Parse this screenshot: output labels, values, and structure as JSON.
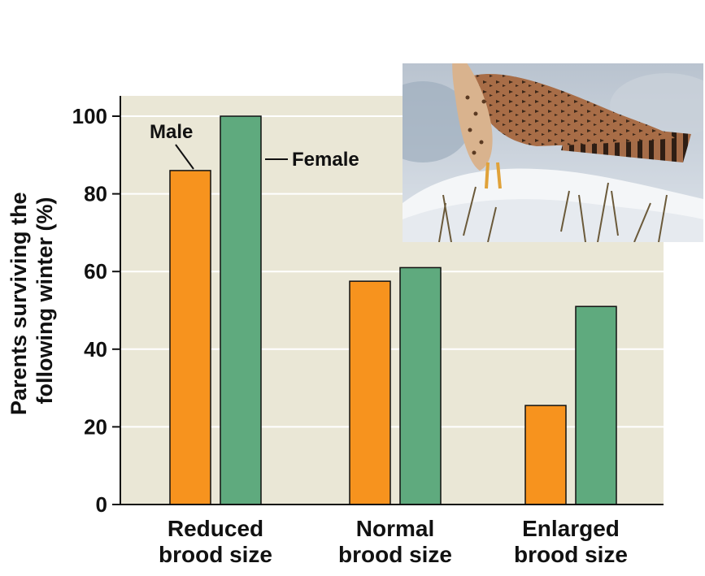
{
  "chart_data": {
    "type": "bar",
    "categories": [
      [
        "Reduced",
        "brood size"
      ],
      [
        "Normal",
        "brood size"
      ],
      [
        "Enlarged",
        "brood size"
      ]
    ],
    "series": [
      {
        "name": "Male",
        "values": [
          86,
          57.5,
          25.5
        ],
        "color": "#F7931E"
      },
      {
        "name": "Female",
        "values": [
          100,
          61,
          51
        ],
        "color": "#5FAA7E"
      }
    ],
    "ylabel": [
      "Parents surviving the",
      "following winter (%)"
    ],
    "xlabel": "",
    "ylim": [
      0,
      100
    ],
    "yticks": [
      0,
      20,
      40,
      60,
      80,
      100
    ],
    "grid": true,
    "plot_background": "#EAE7D6",
    "photo": "kestrel-on-snow"
  }
}
